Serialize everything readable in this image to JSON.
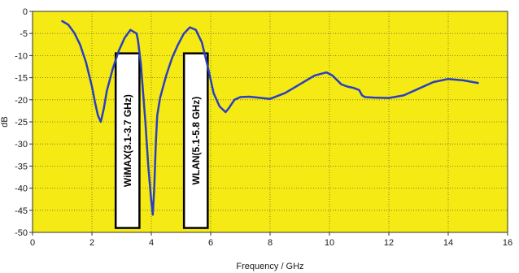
{
  "chart_data": {
    "type": "line",
    "title": "",
    "xlabel": "Frequency / GHz",
    "ylabel": "dB",
    "xlim": [
      0,
      16
    ],
    "ylim": [
      -50,
      0
    ],
    "x_ticks": [
      0,
      2,
      4,
      6,
      8,
      10,
      12,
      14,
      16
    ],
    "y_ticks": [
      0,
      -5,
      -10,
      -15,
      -20,
      -25,
      -30,
      -35,
      -40,
      -45,
      -50
    ],
    "grid": true,
    "legend": "none",
    "colors": {
      "plot_background": "#f5ea14",
      "line": "#2a3fc0",
      "grid": "#6d6a2a",
      "band_box": "#ffffff"
    },
    "series": [
      {
        "x": [
          1.0,
          1.2,
          1.4,
          1.6,
          1.8,
          2.0,
          2.1,
          2.2,
          2.3,
          2.4,
          2.5,
          2.7,
          2.9,
          3.1,
          3.3,
          3.5,
          3.55,
          3.65,
          3.8,
          3.9,
          4.0,
          4.05,
          4.1,
          4.15,
          4.2,
          4.3,
          4.5,
          4.7,
          4.9,
          5.1,
          5.3,
          5.5,
          5.7,
          5.9,
          6.1,
          6.3,
          6.5,
          6.6,
          6.8,
          7.0,
          7.3,
          7.6,
          8.0,
          8.5,
          9.0,
          9.5,
          9.9,
          10.1,
          10.4,
          10.6,
          10.8,
          11.0,
          11.1,
          11.2,
          11.5,
          12.0,
          12.5,
          13.0,
          13.5,
          14.0,
          14.5,
          15.0
        ],
        "y": [
          -2.2,
          -3.0,
          -4.8,
          -7.5,
          -11.5,
          -17.0,
          -20.5,
          -23.5,
          -25.0,
          -22.0,
          -18.0,
          -13.0,
          -9.0,
          -6.0,
          -4.2,
          -5.0,
          -6.5,
          -12.0,
          -25.0,
          -35.0,
          -43.0,
          -46.0,
          -40.0,
          -30.0,
          -23.5,
          -19.5,
          -14.5,
          -10.5,
          -7.5,
          -5.0,
          -3.6,
          -4.2,
          -7.0,
          -12.5,
          -18.5,
          -21.5,
          -22.8,
          -22.0,
          -20.0,
          -19.4,
          -19.3,
          -19.5,
          -19.8,
          -18.5,
          -16.5,
          -14.5,
          -13.8,
          -14.5,
          -16.5,
          -17.0,
          -17.3,
          -17.8,
          -19.0,
          -19.4,
          -19.5,
          -19.6,
          -19.0,
          -17.5,
          -16.0,
          -15.3,
          -15.6,
          -16.2
        ]
      }
    ],
    "annotations": [
      {
        "text": "WiMAX(3.1-3.7 GHz)",
        "x_range": [
          2.8,
          3.6
        ],
        "y_range": [
          -9.5,
          -49
        ]
      },
      {
        "text": "WLAN(5.1-5.8 GHz)",
        "x_range": [
          5.1,
          5.9
        ],
        "y_range": [
          -9.5,
          -49
        ]
      }
    ]
  }
}
